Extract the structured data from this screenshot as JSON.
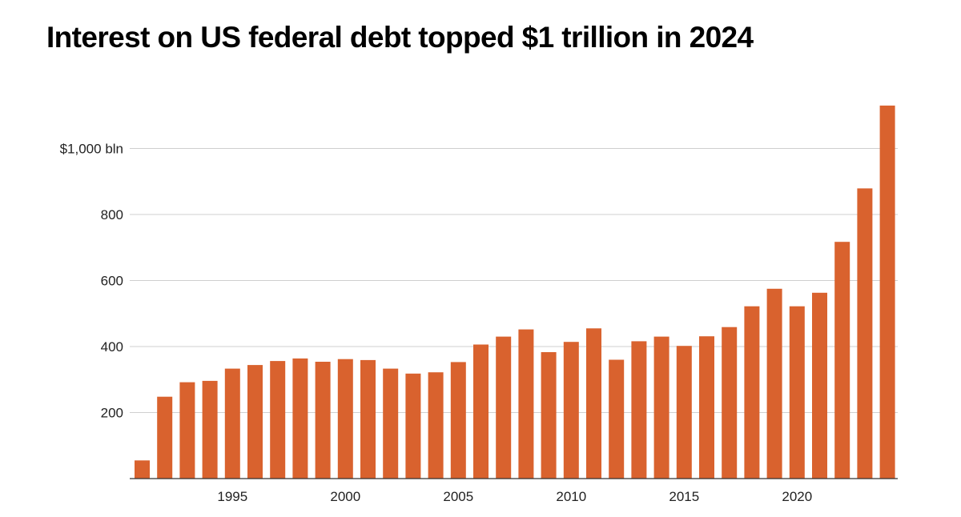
{
  "title": "Interest on US federal debt topped $1 trillion in 2024",
  "colors": {
    "bar": "#d9622e",
    "grid": "#cfcfcf",
    "axis": "#333333"
  },
  "chart_data": {
    "type": "bar",
    "title": "Interest on US federal debt topped $1 trillion in 2024",
    "xlabel": "",
    "ylabel": "",
    "categories": [
      1991,
      1992,
      1993,
      1994,
      1995,
      1996,
      1997,
      1998,
      1999,
      2000,
      2001,
      2002,
      2003,
      2004,
      2005,
      2006,
      2007,
      2008,
      2009,
      2010,
      2011,
      2012,
      2013,
      2014,
      2015,
      2016,
      2017,
      2018,
      2019,
      2020,
      2021,
      2022,
      2023,
      2024
    ],
    "values": [
      55,
      248,
      292,
      296,
      333,
      344,
      356,
      364,
      354,
      362,
      359,
      333,
      318,
      322,
      353,
      406,
      430,
      452,
      383,
      414,
      455,
      360,
      416,
      430,
      402,
      431,
      459,
      522,
      575,
      522,
      563,
      717,
      879,
      1130
    ],
    "ylim": [
      0,
      1150
    ],
    "yticks": [
      200,
      400,
      600,
      800,
      1000
    ],
    "ytick_labels": [
      "200",
      "400",
      "600",
      "800",
      "$1,000 bln"
    ],
    "xticks": [
      1995,
      2000,
      2005,
      2010,
      2015,
      2020
    ],
    "xtick_labels": [
      "1995",
      "2000",
      "2005",
      "2010",
      "2015",
      "2020"
    ],
    "grid": true,
    "legend": "none"
  }
}
